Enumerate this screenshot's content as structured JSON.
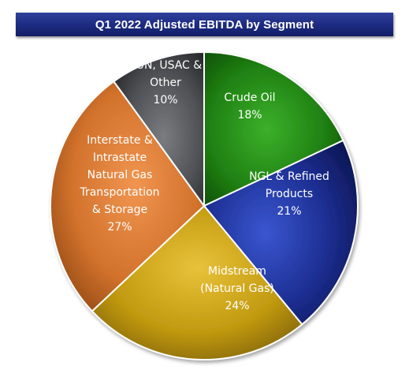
{
  "colors": {
    "crude": "#1f7a10",
    "ngl": "#1a2c8c",
    "midstream": "#c8a012",
    "interstate": "#d27530",
    "other": "#55575a"
  },
  "chart_data": {
    "type": "pie",
    "title": "Q1 2022 Adjusted EBITDA by Segment",
    "start_angle_deg": 0,
    "direction": "clockwise",
    "slices": [
      {
        "key": "crude",
        "lines": [
          "Crude Oil",
          "18%"
        ],
        "value": 18
      },
      {
        "key": "ngl",
        "lines": [
          "NGL & Refined",
          "Products",
          "21%"
        ],
        "value": 21
      },
      {
        "key": "midstream",
        "lines": [
          "Midstream",
          "(Natural Gas)",
          "24%"
        ],
        "value": 24
      },
      {
        "key": "interstate",
        "lines": [
          "Interstate &",
          "Intrastate",
          "Natural Gas",
          "Transportation",
          "& Storage",
          "27%"
        ],
        "value": 27
      },
      {
        "key": "other",
        "lines": [
          "SUN, USAC &",
          "Other",
          "10%"
        ],
        "value": 10
      }
    ]
  }
}
